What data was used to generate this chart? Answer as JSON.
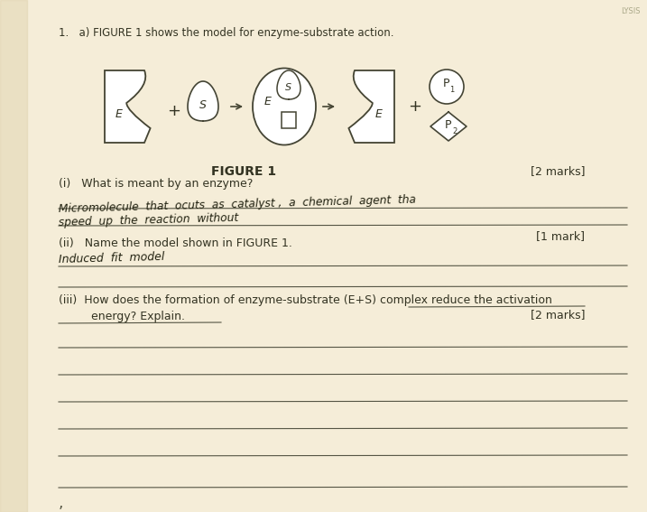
{
  "bg_color": "#f0e8d0",
  "paper_color": "#f5edd8",
  "left_margin_color": "#e8dcc0",
  "title_text": "1.   a) FIGURE 1 shows the model for enzyme-substrate action.",
  "figure_label": "FIGURE 1",
  "marks_figure": "[2 marks]",
  "q_i_label": "(i)   What is meant by an enzyme?",
  "q_i_line1": "Micromolecule  that  ocuts  as  catalyst ,  a  chemical  agent  tha",
  "q_i_line2": "speed  up  the  reaction  without",
  "marks_i": "[1 mark]",
  "q_ii_label": "(ii)   Name the model shown in FIGURE 1.",
  "q_ii_answer": "Induced  fit  model",
  "q_iii_label": "(iii)  How does the formation of enzyme-substrate (E+S) complex reduce the activation",
  "q_iii_label2": "         energy? Explain.",
  "marks_iii": "[2 marks]",
  "line_color": "#555544",
  "text_color": "#333322",
  "handwriting_color": "#222211",
  "diagram_line": "#444433"
}
